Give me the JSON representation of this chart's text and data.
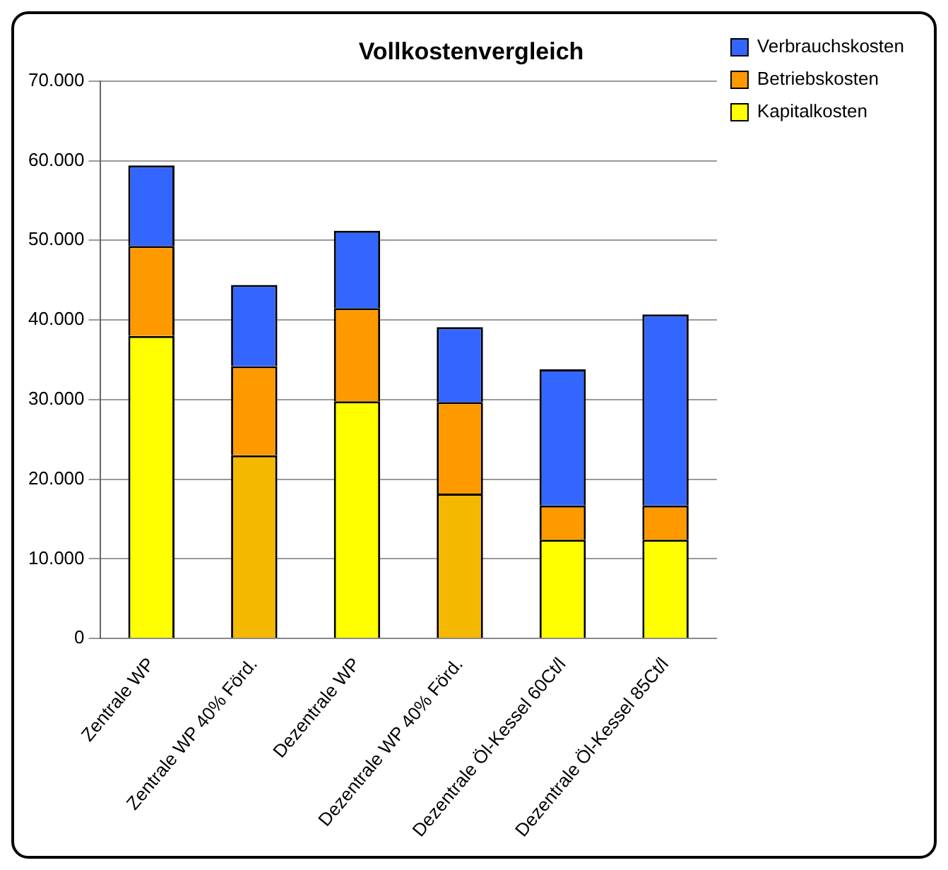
{
  "chart_data": {
    "type": "bar",
    "title": "Vollkostenvergleich",
    "categories": [
      "Zentrale WP",
      "Zentrale WP 40% Förd.",
      "Dezentrale WP",
      "Dezentrale WP 40% Förd.",
      "Dezentrale Öl-Kessel 60Ct/l",
      "Dezentrale Öl-Kessel 85Ct/l"
    ],
    "stacked": true,
    "series": [
      {
        "name": "Kapitalkosten",
        "color": "#ffff00",
        "colors": [
          "#ffff00",
          "#f5b800",
          "#ffff00",
          "#f5b800",
          "#ffff00",
          "#ffff00"
        ],
        "values": [
          38000,
          23000,
          29800,
          18200,
          12400,
          12400
        ]
      },
      {
        "name": "Betriebskosten",
        "color": "#ff9900",
        "values": [
          11300,
          11200,
          11700,
          11500,
          4300,
          4300
        ]
      },
      {
        "name": "Verbrauchskosten",
        "color": "#3366ff",
        "values": [
          10100,
          10200,
          9700,
          9400,
          17100,
          24000
        ]
      }
    ],
    "ylim": [
      0,
      70000
    ],
    "yticks": [
      0,
      {
        "value": 10000,
        "label": "10.000"
      },
      {
        "value": 20000,
        "label": "20.000"
      },
      {
        "value": 30000,
        "label": "30.000"
      },
      {
        "value": 40000,
        "label": "40.000"
      },
      {
        "value": 50000,
        "label": "50.000"
      },
      {
        "value": 60000,
        "label": "60.000"
      },
      {
        "value": 70000,
        "label": "70.000"
      }
    ],
    "grid": "y",
    "legend": "top right"
  }
}
